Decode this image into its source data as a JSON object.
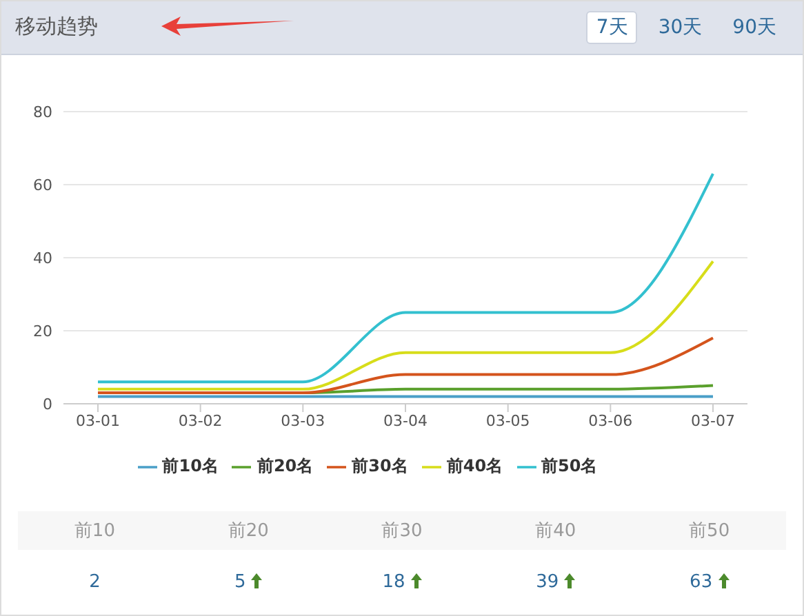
{
  "chart_data": {
    "type": "line",
    "title": "移动趋势",
    "categories": [
      "03-01",
      "03-02",
      "03-03",
      "03-04",
      "03-05",
      "03-06",
      "03-07"
    ],
    "series": [
      {
        "name": "前10名",
        "color": "#4a9fc8",
        "values": [
          2,
          2,
          2,
          2,
          2,
          2,
          2
        ]
      },
      {
        "name": "前20名",
        "color": "#5aa02c",
        "values": [
          3,
          3,
          3,
          4,
          4,
          4,
          5
        ]
      },
      {
        "name": "前30名",
        "color": "#d4541c",
        "values": [
          3,
          3,
          3,
          8,
          8,
          8,
          18
        ]
      },
      {
        "name": "前40名",
        "color": "#d7dd1a",
        "values": [
          4,
          4,
          4,
          14,
          14,
          14,
          39
        ]
      },
      {
        "name": "前50名",
        "color": "#33c0cf",
        "values": [
          6,
          6,
          6,
          25,
          25,
          25,
          63
        ]
      }
    ],
    "ylim": [
      0,
      80
    ],
    "yticks": [
      0,
      20,
      40,
      60,
      80
    ],
    "grid": "y",
    "legend": "bottom",
    "marker": "none",
    "line_style": "solid",
    "annotations": [
      "7天",
      "30天",
      "90天",
      "前10",
      "前20",
      "前30",
      "前40",
      "前50",
      "2",
      "5",
      "18",
      "39",
      "63"
    ]
  }
}
